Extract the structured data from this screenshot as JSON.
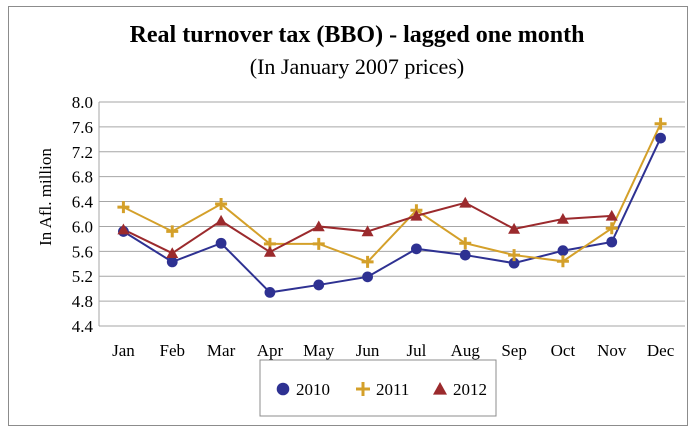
{
  "chart_data": {
    "type": "line",
    "title": "Real turnover tax (BBO) - lagged one month",
    "subtitle": "(In January 2007 prices)",
    "xlabel": "",
    "ylabel": "In Afl. million",
    "categories": [
      "Jan",
      "Feb",
      "Mar",
      "Apr",
      "May",
      "Jun",
      "Jul",
      "Aug",
      "Sep",
      "Oct",
      "Nov",
      "Dec"
    ],
    "ylim": [
      4.4,
      8.0
    ],
    "yticks": [
      "8.0",
      "7.6",
      "7.2",
      "6.8",
      "6.4",
      "6.0",
      "5.6",
      "5.2",
      "4.8",
      "4.4"
    ],
    "grid": true,
    "legend_position": "bottom",
    "series": [
      {
        "name": "2010",
        "color": "#2e3192",
        "marker": "circle",
        "values": [
          5.92,
          5.43,
          5.73,
          4.94,
          5.06,
          5.19,
          5.64,
          5.54,
          5.41,
          5.61,
          5.75,
          7.42
        ]
      },
      {
        "name": "2011",
        "color": "#d4a02a",
        "marker": "plus",
        "values": [
          6.31,
          5.92,
          6.36,
          5.72,
          5.72,
          5.43,
          6.26,
          5.73,
          5.54,
          5.44,
          5.97,
          7.65
        ]
      },
      {
        "name": "2012",
        "color": "#9b2a2d",
        "marker": "triangle",
        "values": [
          5.95,
          5.57,
          6.09,
          5.59,
          6.0,
          5.92,
          6.17,
          6.38,
          5.96,
          6.12,
          6.17,
          null
        ]
      }
    ]
  }
}
